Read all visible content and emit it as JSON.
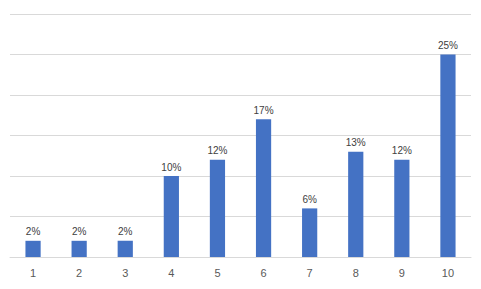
{
  "chart_data": {
    "type": "bar",
    "categories": [
      "1",
      "2",
      "3",
      "4",
      "5",
      "6",
      "7",
      "8",
      "9",
      "10"
    ],
    "values": [
      2,
      2,
      2,
      10,
      12,
      17,
      6,
      13,
      12,
      25
    ],
    "value_labels": [
      "2%",
      "2%",
      "2%",
      "10%",
      "12%",
      "17%",
      "6%",
      "13%",
      "12%",
      "25%"
    ],
    "color": "#4472c4",
    "ylim": [
      0,
      30
    ],
    "yticks": [
      0,
      5,
      10,
      15,
      20,
      25,
      30
    ],
    "grid": true,
    "data_labels": true,
    "tick_labels": "x"
  }
}
